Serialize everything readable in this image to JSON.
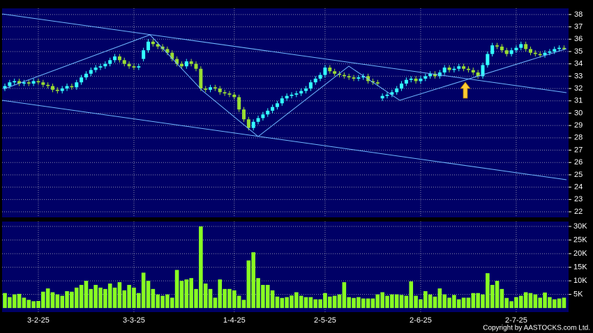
{
  "chart_data": {
    "type": "candlestick",
    "categories": [
      null,
      null,
      null,
      null,
      null,
      null,
      null,
      "3-2-25",
      null,
      null,
      null,
      null,
      null,
      null,
      null,
      null,
      null,
      null,
      null,
      null,
      null,
      null,
      null,
      null,
      null,
      null,
      null,
      "3-3-25",
      null,
      null,
      null,
      null,
      null,
      null,
      null,
      null,
      null,
      null,
      null,
      null,
      null,
      null,
      null,
      null,
      null,
      null,
      null,
      null,
      "1-4-25",
      null,
      null,
      null,
      null,
      null,
      null,
      null,
      null,
      null,
      null,
      null,
      null,
      null,
      null,
      null,
      null,
      null,
      null,
      "2-5-25",
      null,
      null,
      null,
      null,
      null,
      null,
      null,
      null,
      null,
      null,
      null,
      null,
      null,
      null,
      null,
      null,
      null,
      null,
      null,
      "2-6-25",
      null,
      null,
      null,
      null,
      null,
      null,
      null,
      null,
      null,
      null,
      null,
      null,
      null,
      null,
      null,
      null,
      null,
      null,
      null,
      "2-7-25",
      null,
      null,
      null,
      null,
      null,
      null,
      null,
      null,
      null,
      null
    ],
    "open": [
      32.0,
      32.2,
      32.5,
      32.6,
      32.4,
      32.5,
      32.4,
      32.6,
      32.5,
      32.3,
      32.2,
      31.9,
      31.8,
      32.0,
      32.2,
      32.1,
      32.5,
      32.9,
      33.2,
      33.5,
      33.7,
      33.8,
      34.0,
      34.3,
      34.6,
      34.3,
      34.0,
      33.8,
      33.7,
      34.4,
      35.1,
      35.8,
      35.6,
      35.4,
      35.2,
      34.9,
      34.4,
      34.0,
      33.8,
      34.2,
      34.0,
      33.6,
      32.0,
      31.9,
      32.1,
      32.0,
      31.7,
      31.6,
      31.5,
      31.3,
      30.3,
      29.5,
      28.8,
      29.3,
      29.6,
      29.9,
      30.2,
      30.5,
      30.8,
      31.2,
      31.4,
      31.5,
      31.6,
      31.8,
      32.0,
      32.5,
      32.8,
      33.1,
      33.7,
      33.4,
      33.2,
      33.1,
      33.0,
      32.9,
      32.8,
      32.9,
      33.0,
      32.6,
      32.5,
      31.2,
      31.4,
      31.5,
      31.7,
      32.0,
      32.4,
      32.7,
      32.8,
      32.6,
      32.8,
      33.0,
      33.2,
      33.0,
      33.3,
      33.7,
      33.5,
      33.6,
      33.8,
      33.6,
      33.5,
      33.3,
      33.0,
      33.9,
      34.8,
      35.5,
      35.4,
      35.1,
      34.8,
      35.1,
      35.3,
      35.6,
      35.2,
      34.9,
      34.8,
      34.7,
      34.9,
      35.0,
      35.2,
      35.3
    ],
    "high": [
      32.4,
      32.7,
      32.8,
      32.8,
      32.7,
      32.7,
      32.8,
      32.8,
      32.7,
      32.5,
      32.4,
      32.1,
      32.2,
      32.4,
      32.4,
      32.7,
      33.1,
      33.4,
      33.7,
      33.9,
      34.0,
      34.2,
      34.5,
      34.8,
      34.8,
      34.5,
      34.2,
      34.0,
      34.0,
      35.3,
      36.0,
      36.0,
      35.8,
      35.6,
      35.4,
      35.1,
      34.6,
      34.2,
      34.4,
      34.4,
      34.2,
      33.8,
      32.2,
      32.3,
      32.3,
      32.2,
      31.9,
      31.8,
      31.7,
      31.5,
      30.5,
      29.7,
      29.5,
      29.8,
      30.1,
      30.4,
      30.7,
      31.0,
      31.4,
      31.6,
      31.7,
      31.8,
      32.0,
      32.2,
      32.7,
      33.0,
      33.3,
      33.9,
      33.9,
      33.6,
      33.4,
      33.3,
      33.2,
      33.1,
      33.1,
      33.2,
      33.2,
      32.8,
      32.7,
      31.6,
      31.7,
      31.9,
      32.2,
      32.6,
      32.9,
      33.0,
      33.0,
      33.0,
      33.2,
      33.4,
      33.4,
      33.5,
      33.9,
      33.9,
      33.8,
      34.0,
      34.0,
      33.8,
      33.7,
      33.5,
      34.1,
      35.0,
      35.7,
      35.7,
      35.6,
      35.3,
      35.3,
      35.5,
      35.8,
      35.8,
      35.4,
      35.1,
      35.0,
      35.1,
      35.2,
      35.4,
      35.5,
      35.5
    ],
    "low": [
      31.8,
      32.0,
      32.3,
      32.2,
      32.2,
      32.2,
      32.2,
      32.3,
      32.1,
      32.0,
      31.7,
      31.6,
      31.6,
      31.8,
      31.9,
      31.9,
      32.3,
      32.7,
      33.0,
      33.3,
      33.5,
      33.6,
      33.8,
      34.1,
      34.1,
      33.8,
      33.6,
      33.5,
      33.5,
      34.2,
      34.9,
      35.4,
      35.2,
      35.0,
      34.7,
      34.2,
      33.8,
      33.6,
      33.6,
      33.8,
      33.4,
      31.8,
      31.7,
      31.7,
      31.8,
      31.5,
      31.4,
      31.3,
      31.1,
      30.1,
      29.3,
      28.6,
      28.6,
      29.1,
      29.4,
      29.7,
      30.0,
      30.3,
      30.6,
      31.0,
      31.2,
      31.3,
      31.4,
      31.6,
      31.8,
      32.3,
      32.6,
      32.9,
      33.2,
      33.0,
      32.9,
      32.8,
      32.7,
      32.6,
      32.6,
      32.7,
      32.4,
      32.3,
      32.2,
      31.0,
      31.2,
      31.3,
      31.5,
      31.8,
      32.2,
      32.5,
      32.4,
      32.4,
      32.6,
      32.8,
      32.8,
      32.8,
      33.1,
      33.3,
      33.3,
      33.4,
      33.4,
      33.3,
      33.1,
      32.8,
      32.8,
      33.7,
      34.6,
      35.2,
      34.9,
      34.6,
      34.6,
      34.9,
      35.1,
      35.0,
      34.7,
      34.6,
      34.5,
      34.5,
      34.7,
      34.8,
      35.0,
      35.1
    ],
    "close": [
      32.2,
      32.5,
      32.6,
      32.4,
      32.5,
      32.4,
      32.6,
      32.5,
      32.3,
      32.2,
      31.9,
      31.8,
      32.0,
      32.2,
      32.1,
      32.5,
      32.9,
      33.2,
      33.5,
      33.7,
      33.8,
      34.0,
      34.3,
      34.6,
      34.3,
      34.0,
      33.8,
      33.7,
      33.8,
      35.1,
      35.8,
      35.6,
      35.4,
      35.2,
      34.9,
      34.4,
      34.0,
      33.8,
      34.2,
      34.0,
      33.6,
      32.0,
      31.9,
      32.1,
      32.0,
      31.7,
      31.6,
      31.5,
      31.3,
      30.3,
      29.5,
      28.8,
      29.3,
      29.6,
      29.9,
      30.2,
      30.5,
      30.8,
      31.2,
      31.4,
      31.5,
      31.6,
      31.8,
      32.0,
      32.5,
      32.8,
      33.1,
      33.7,
      33.4,
      33.2,
      33.1,
      33.0,
      32.9,
      32.8,
      32.9,
      33.0,
      32.6,
      32.5,
      32.4,
      31.4,
      31.5,
      31.7,
      32.0,
      32.4,
      32.7,
      32.8,
      32.6,
      32.8,
      33.0,
      33.2,
      33.0,
      33.3,
      33.7,
      33.5,
      33.6,
      33.8,
      33.6,
      33.5,
      33.3,
      33.0,
      33.9,
      34.8,
      35.5,
      35.4,
      35.1,
      34.8,
      35.1,
      35.3,
      35.6,
      35.2,
      34.9,
      34.8,
      34.7,
      34.9,
      35.0,
      35.2,
      35.3,
      35.2
    ],
    "volume": [
      5500,
      4000,
      5000,
      5200,
      3800,
      3000,
      2500,
      2600,
      6000,
      7200,
      5800,
      5000,
      4500,
      6200,
      6000,
      7500,
      8500,
      10000,
      7000,
      8500,
      7500,
      7000,
      9000,
      7500,
      9500,
      6500,
      8500,
      7500,
      5500,
      13000,
      10000,
      7000,
      5000,
      4500,
      5000,
      3800,
      14000,
      10000,
      10500,
      11000,
      7000,
      30000,
      9000,
      7000,
      3800,
      10500,
      7000,
      7000,
      6500,
      4500,
      3000,
      17500,
      20500,
      11000,
      8500,
      8500,
      6500,
      4200,
      3700,
      4000,
      4600,
      5800,
      4500,
      4000,
      4000,
      3200,
      3200,
      5500,
      4200,
      4500,
      5000,
      9500,
      4000,
      3700,
      4000,
      3500,
      3500,
      3500,
      5000,
      5800,
      4500,
      5000,
      5000,
      4800,
      4500,
      9800,
      4500,
      3200,
      6200,
      5000,
      4200,
      7200,
      5000,
      3800,
      4800,
      3200,
      3800,
      3800,
      5500,
      5500,
      5000,
      12800,
      8500,
      10000,
      7000,
      3700,
      2500,
      4000,
      4500,
      5800,
      5500,
      5000,
      3800,
      5700,
      4000,
      3200,
      3500,
      3800
    ],
    "up_color": "#33ffff",
    "down_color": "#99dd33",
    "volume_color": "#88ff22",
    "ylim": [
      21.55,
      38.5
    ],
    "yticks": [
      22,
      23,
      24,
      25,
      26,
      27,
      28,
      29,
      30,
      31,
      32,
      33,
      34,
      35,
      36,
      37,
      38
    ],
    "y2lim": [
      -1500,
      31800
    ],
    "y2ticks": [
      {
        "value": 5000,
        "label": "5K"
      },
      {
        "value": 10000,
        "label": "10K"
      },
      {
        "value": 15000,
        "label": "15K"
      },
      {
        "value": 20000,
        "label": "20K"
      },
      {
        "value": 25000,
        "label": "25K"
      },
      {
        "value": 30000,
        "label": "30K"
      }
    ],
    "grid": true,
    "copyright": "Copyright by AASTOCKS.com Ltd."
  }
}
